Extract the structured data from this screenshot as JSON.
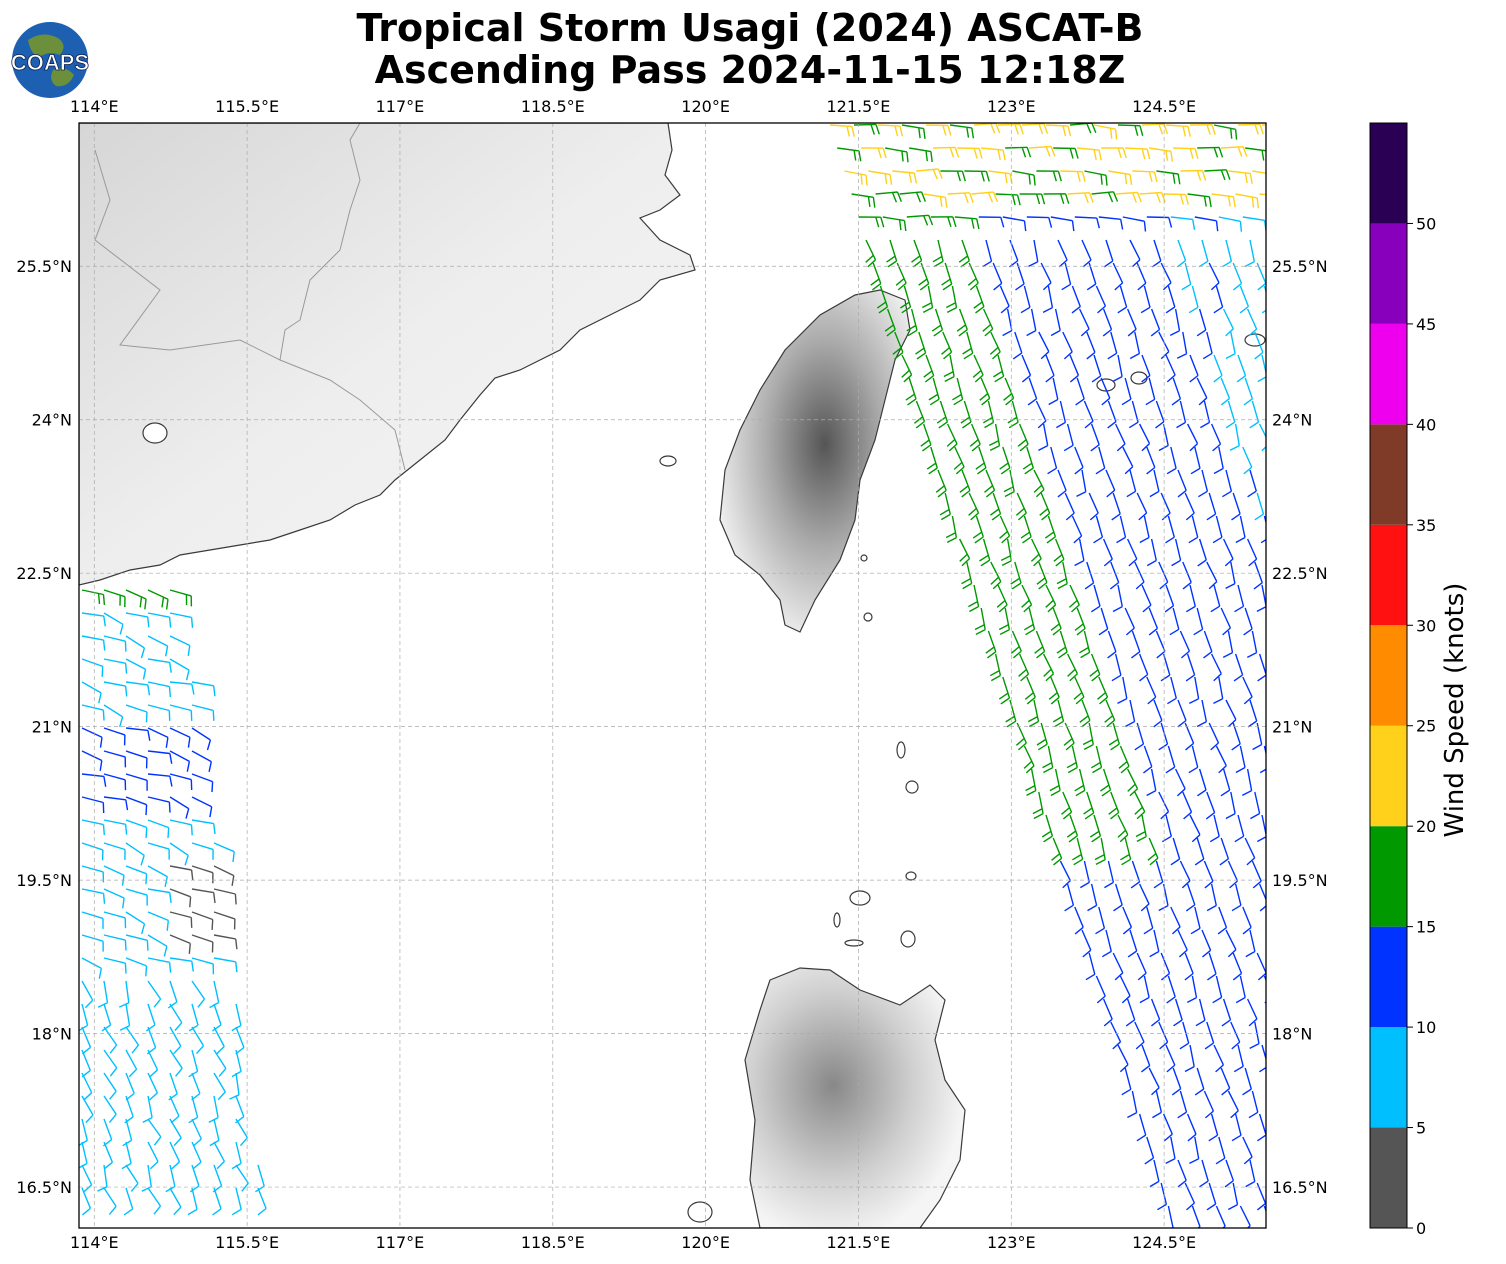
{
  "title": {
    "line1": "Tropical Storm Usagi (2024) ASCAT-B",
    "line2": "Ascending Pass 2024-11-15 12:18Z"
  },
  "logo": {
    "text": "COAPS",
    "ocean_color": "#1d5fb0"
  },
  "map": {
    "lon_range": [
      113.85,
      125.5
    ],
    "lat_range": [
      16.1,
      26.9
    ],
    "lon_ticks": [
      "114°E",
      "115.5°E",
      "117°E",
      "118.5°E",
      "120°E",
      "121.5°E",
      "123°E",
      "124.5°E"
    ],
    "lon_values": [
      114,
      115.5,
      117,
      118.5,
      120,
      121.5,
      123,
      124.5
    ],
    "lat_ticks": [
      "25.5°N",
      "24°N",
      "22.5°N",
      "21°N",
      "19.5°N",
      "18°N",
      "16.5°N"
    ],
    "lat_values": [
      25.5,
      24,
      22.5,
      21,
      19.5,
      18,
      16.5
    ],
    "grid": true,
    "land_style": "grey shaded terrain",
    "coastline_color": "#333333"
  },
  "colorbar": {
    "label": "Wind Speed (knots)",
    "tick_labels": [
      "0",
      "5",
      "10",
      "15",
      "20",
      "25",
      "30",
      "35",
      "40",
      "45",
      "50"
    ],
    "bins": [
      {
        "from": 0,
        "to": 5,
        "color": "#555555"
      },
      {
        "from": 5,
        "to": 10,
        "color": "#00bfff"
      },
      {
        "from": 10,
        "to": 15,
        "color": "#0033ff"
      },
      {
        "from": 15,
        "to": 20,
        "color": "#009900"
      },
      {
        "from": 20,
        "to": 25,
        "color": "#ffd11a"
      },
      {
        "from": 25,
        "to": 30,
        "color": "#ff8c00"
      },
      {
        "from": 30,
        "to": 35,
        "color": "#ff1111"
      },
      {
        "from": 35,
        "to": 40,
        "color": "#7f3a28"
      },
      {
        "from": 40,
        "to": 45,
        "color": "#ee00ee"
      },
      {
        "from": 45,
        "to": 50,
        "color": "#8800bb"
      },
      {
        "from": 50,
        "to": 55,
        "color": "#2a0055"
      }
    ]
  }
}
